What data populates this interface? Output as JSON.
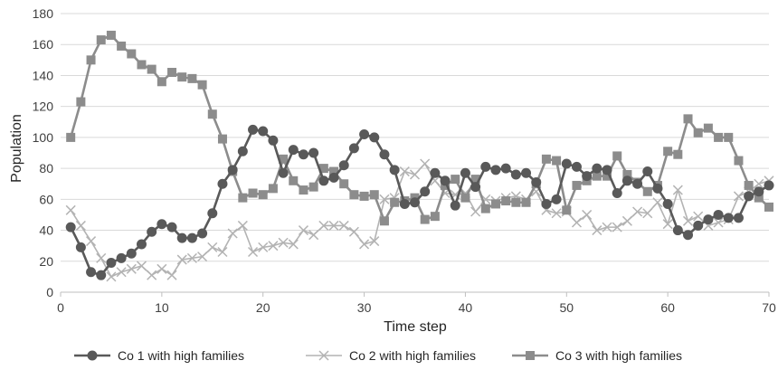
{
  "chart_data": {
    "type": "line",
    "title": "",
    "xlabel": "Time step",
    "ylabel": "Population",
    "xlim": [
      0,
      70
    ],
    "ylim": [
      0,
      180
    ],
    "x_ticks": [
      0,
      10,
      20,
      30,
      40,
      50,
      60,
      70
    ],
    "y_ticks": [
      0,
      20,
      40,
      60,
      80,
      100,
      120,
      140,
      160,
      180
    ],
    "grid": "horizontal",
    "legend_position": "bottom",
    "x": [
      1,
      2,
      3,
      4,
      5,
      6,
      7,
      8,
      9,
      10,
      11,
      12,
      13,
      14,
      15,
      16,
      17,
      18,
      19,
      20,
      21,
      22,
      23,
      24,
      25,
      26,
      27,
      28,
      29,
      30,
      31,
      32,
      33,
      34,
      35,
      36,
      37,
      38,
      39,
      40,
      41,
      42,
      43,
      44,
      45,
      46,
      47,
      48,
      49,
      50,
      51,
      52,
      53,
      54,
      55,
      56,
      57,
      58,
      59,
      60,
      61,
      62,
      63,
      64,
      65,
      66,
      67,
      68,
      69,
      70
    ],
    "series": [
      {
        "name": "Co 1  with high families",
        "color": "#595959",
        "marker": "circle",
        "values": [
          42,
          29,
          13,
          11,
          19,
          22,
          25,
          31,
          39,
          44,
          42,
          35,
          35,
          38,
          51,
          70,
          79,
          91,
          105,
          104,
          98,
          77,
          92,
          89,
          90,
          72,
          74,
          82,
          93,
          102,
          100,
          89,
          79,
          57,
          58,
          65,
          77,
          72,
          56,
          77,
          68,
          81,
          79,
          80,
          76,
          77,
          71,
          57,
          60,
          83,
          81,
          75,
          80,
          79,
          64,
          72,
          70,
          78,
          67,
          57,
          40,
          37,
          43,
          47,
          50,
          48,
          48,
          62,
          65,
          69
        ]
      },
      {
        "name": "Co 2  with high families",
        "color": "#b3b3b3",
        "marker": "x",
        "values": [
          53,
          43,
          33,
          22,
          10,
          13,
          15,
          17,
          11,
          15,
          11,
          21,
          22,
          23,
          29,
          26,
          38,
          43,
          26,
          29,
          30,
          32,
          31,
          40,
          37,
          43,
          43,
          43,
          39,
          31,
          33,
          60,
          61,
          78,
          76,
          83,
          72,
          64,
          63,
          64,
          52,
          60,
          59,
          61,
          62,
          60,
          65,
          53,
          51,
          52,
          45,
          50,
          40,
          42,
          42,
          46,
          52,
          51,
          58,
          44,
          66,
          46,
          49,
          43,
          45,
          47,
          62,
          65,
          70,
          72
        ]
      },
      {
        "name": "Co 3  with high families",
        "color": "#8c8c8c",
        "marker": "square",
        "values": [
          100,
          123,
          150,
          163,
          166,
          159,
          154,
          147,
          144,
          136,
          142,
          139,
          138,
          134,
          115,
          99,
          78,
          61,
          64,
          63,
          67,
          86,
          72,
          66,
          68,
          80,
          78,
          70,
          63,
          62,
          63,
          46,
          58,
          59,
          61,
          47,
          49,
          69,
          73,
          61,
          73,
          54,
          57,
          59,
          58,
          58,
          70,
          86,
          85,
          53,
          69,
          72,
          75,
          75,
          88,
          76,
          71,
          65,
          69,
          91,
          89,
          112,
          103,
          106,
          100,
          100,
          85,
          69,
          61,
          55
        ]
      }
    ]
  }
}
